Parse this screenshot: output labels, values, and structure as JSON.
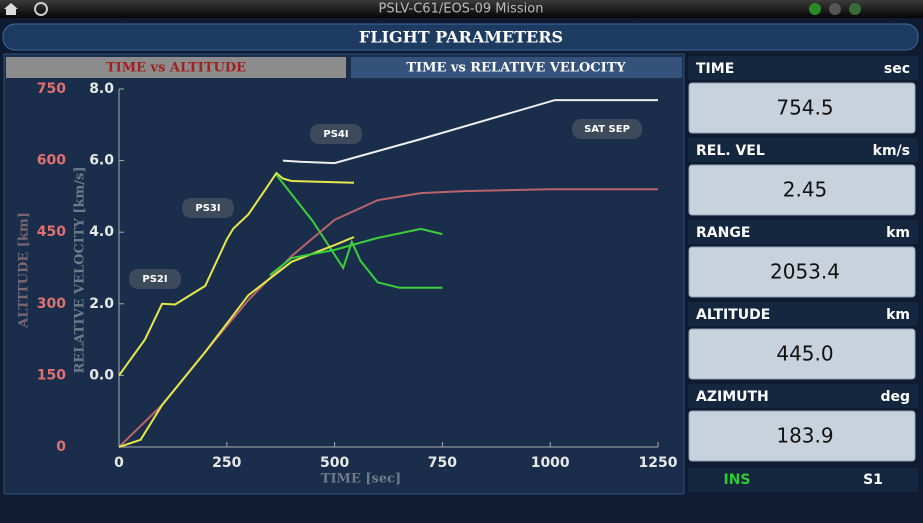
{
  "header": {
    "mission": "PSLV-C61/EOS-09 Mission",
    "panel_title": "FLIGHT PARAMETERS"
  },
  "tabs": [
    "TIME vs ALTITUDE",
    "TIME vs RELATIVE VELOCITY"
  ],
  "chart_data": {
    "type": "line",
    "xlabel": "TIME [sec]",
    "ylabel": "ALTITUDE [km]",
    "y2label": "RELATIVE VELOCITY [km/s]",
    "xlim": [
      0,
      1250
    ],
    "xticks": [
      0,
      250,
      500,
      750,
      1000,
      1250
    ],
    "ylim": [
      0,
      750
    ],
    "yticks": [
      0,
      150,
      300,
      450,
      600,
      750
    ],
    "y2lim": [
      -2,
      8
    ],
    "y2ticks": [
      {
        "value": 0,
        "label": "0.0"
      },
      {
        "value": 2,
        "label": "2.0"
      },
      {
        "value": 4,
        "label": "4.0"
      },
      {
        "value": 6,
        "label": "6.0"
      },
      {
        "value": 8,
        "label": "8.0"
      }
    ],
    "series": [
      {
        "color": "#eeeeee",
        "axis": "y2",
        "x": [
          380,
          420,
          500,
          700,
          1011,
          1250
        ],
        "values": [
          6.0,
          5.97,
          5.93,
          6.6,
          7.69,
          7.69
        ]
      },
      {
        "color": "#e4e84a",
        "axis": "y2",
        "x": [
          0,
          60,
          100,
          130,
          200,
          250,
          265,
          300,
          340,
          365,
          380,
          400,
          545
        ],
        "values": [
          0.0,
          1.0,
          2.0,
          1.98,
          2.5,
          3.8,
          4.1,
          4.5,
          5.2,
          5.65,
          5.5,
          5.43,
          5.38
        ]
      },
      {
        "color": "#3ccf3c",
        "axis": "y2",
        "x": [
          365,
          450,
          520,
          540,
          560,
          580,
          600,
          650,
          750
        ],
        "values": [
          5.6,
          4.3,
          3.0,
          3.73,
          3.2,
          2.9,
          2.6,
          2.45,
          2.45
        ]
      },
      {
        "color": "#b8646a",
        "x": [
          0,
          100,
          200,
          300,
          400,
          500,
          600,
          700,
          800,
          1000,
          1250
        ],
        "values": [
          0,
          88,
          199,
          308,
          400,
          476,
          517,
          532,
          536,
          540,
          540
        ]
      },
      {
        "color": "#e4e84a",
        "x": [
          0,
          50,
          100,
          200,
          300,
          400,
          500,
          545
        ],
        "values": [
          0,
          15,
          88,
          199,
          318,
          388,
          423,
          440
        ]
      },
      {
        "color": "#3ccf3c",
        "x": [
          350,
          400,
          500,
          600,
          700,
          750
        ],
        "values": [
          360,
          396,
          413,
          438,
          457,
          446
        ]
      }
    ],
    "annotations": [
      "PS2I",
      "PS3I",
      "PS4I",
      "SAT SEP"
    ]
  },
  "readouts": [
    {
      "label": "TIME",
      "unit": "sec",
      "value": "754.5"
    },
    {
      "label": "REL. VEL",
      "unit": "km/s",
      "value": "2.45"
    },
    {
      "label": "RANGE",
      "unit": "km",
      "value": "2053.4"
    },
    {
      "label": "ALTITUDE",
      "unit": "km",
      "value": "445.0"
    },
    {
      "label": "AZIMUTH",
      "unit": "deg",
      "value": "183.9"
    }
  ],
  "status": {
    "mode": "INS",
    "stage": "S1"
  }
}
